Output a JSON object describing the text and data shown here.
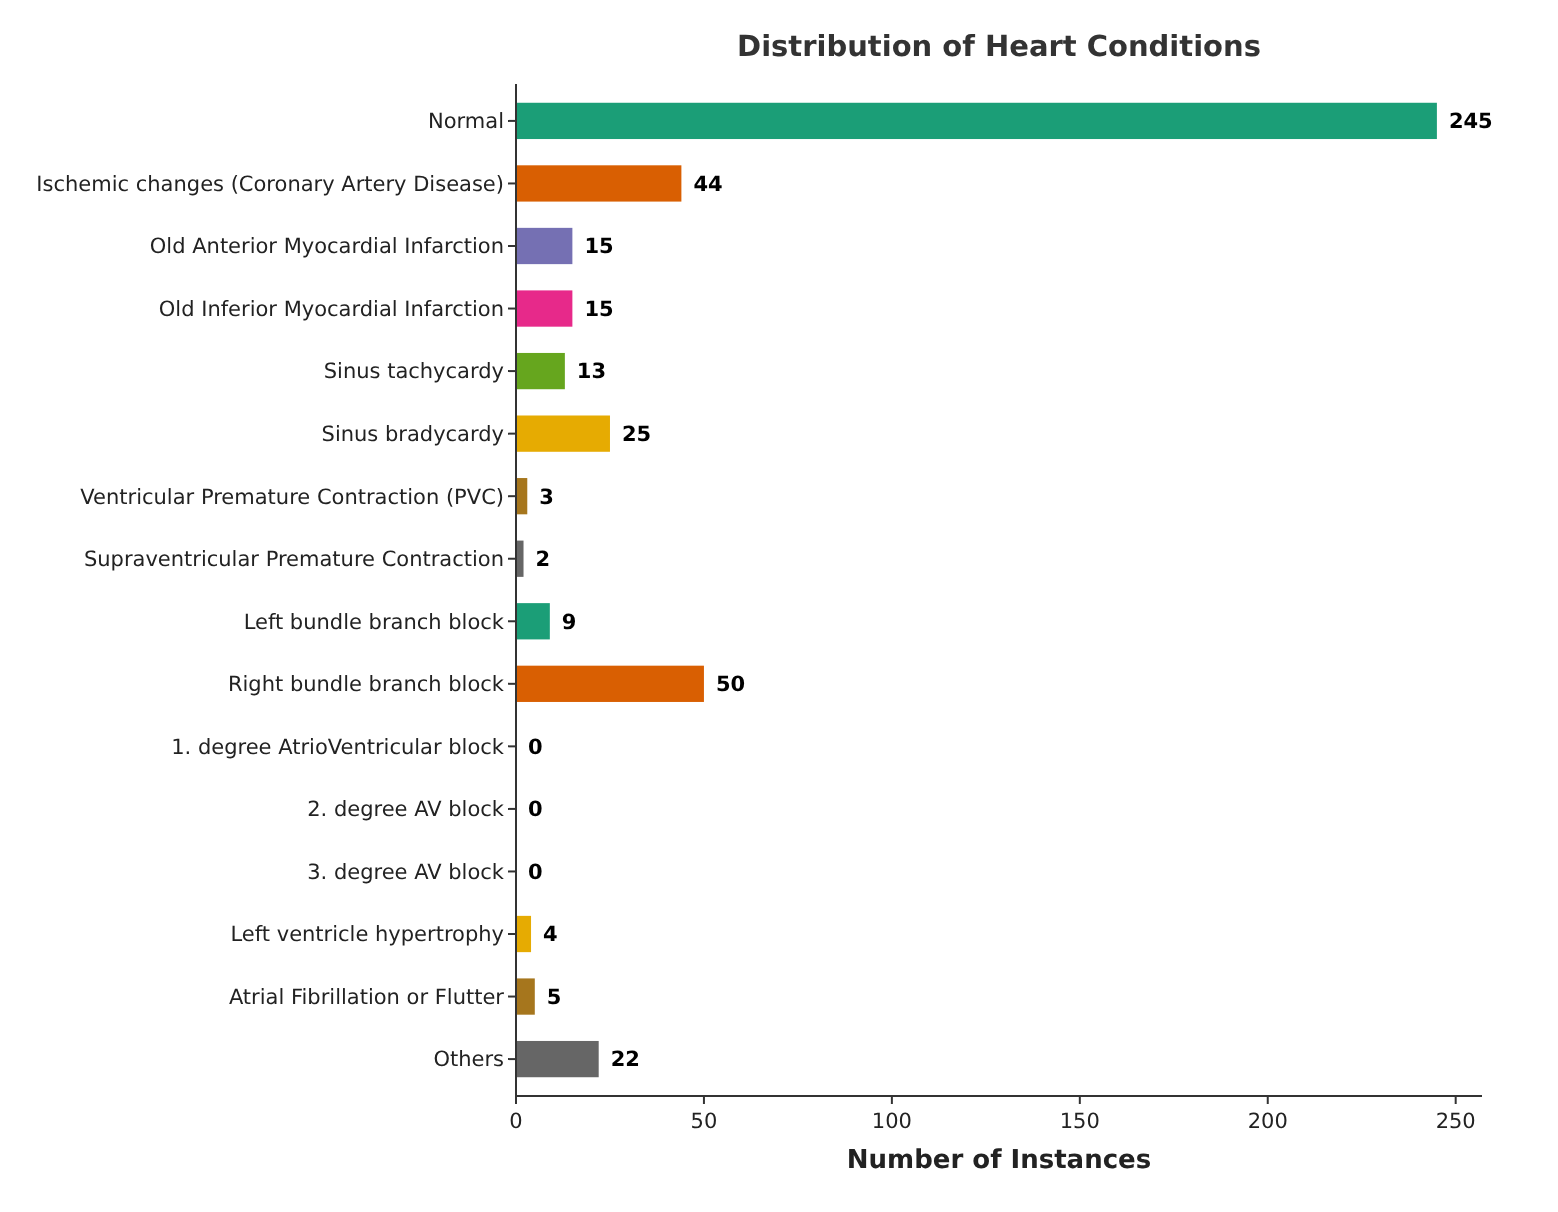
{
  "chart_data": {
    "type": "bar",
    "orientation": "horizontal",
    "title": "Distribution of Heart Conditions",
    "xlabel": "Number of Instances",
    "categories": [
      "Normal",
      "Ischemic changes (Coronary Artery Disease)",
      "Old Anterior Myocardial Infarction",
      "Old Inferior Myocardial Infarction",
      "Sinus tachycardy",
      "Sinus bradycardy",
      "Ventricular Premature Contraction (PVC)",
      "Supraventricular Premature Contraction",
      "Left bundle branch block",
      "Right bundle branch block",
      "1. degree AtrioVentricular block",
      "2. degree AV block",
      "3. degree AV block",
      "Left ventricle hypertrophy",
      "Atrial Fibrillation or Flutter",
      "Others"
    ],
    "values": [
      245,
      44,
      15,
      15,
      13,
      25,
      3,
      2,
      9,
      50,
      0,
      0,
      0,
      4,
      5,
      22
    ],
    "colors": [
      "#1b9e77",
      "#d95f02",
      "#7570b3",
      "#e7298a",
      "#66a61e",
      "#e6ab02",
      "#a6761d",
      "#666666",
      "#1b9e77",
      "#d95f02",
      "#7570b3",
      "#e7298a",
      "#66a61e",
      "#e6ab02",
      "#a6761d",
      "#666666"
    ],
    "xlim": [
      0,
      257
    ],
    "xticks": [
      0,
      50,
      100,
      150,
      200,
      250
    ],
    "data_labels": true
  }
}
